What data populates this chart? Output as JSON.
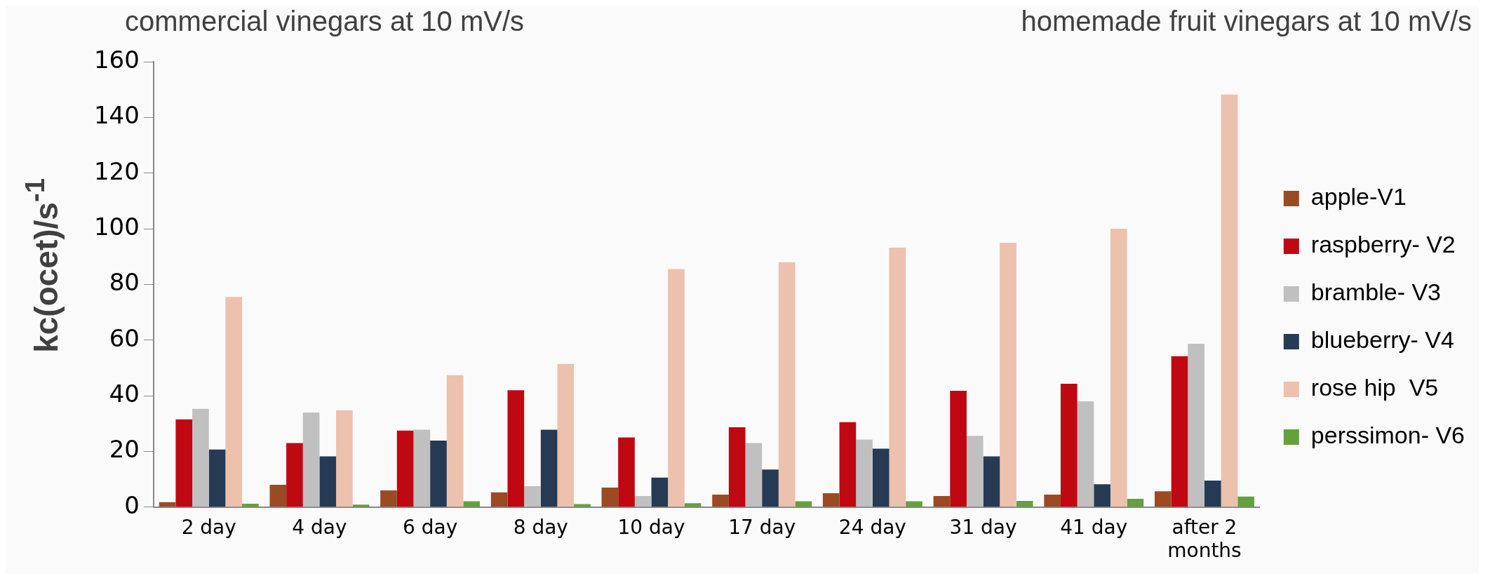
{
  "chart_data": {
    "type": "bar",
    "title": "commercial vinegars at 10 mV/s",
    "subtitle": "homemade fruit vinegars at 10 mV/s",
    "ylabel": "kc(ocet)/s$^{-1}$",
    "categories": [
      "2 day",
      "4 day",
      "6 day",
      "8 day",
      "10 day",
      "17 day",
      "24 day",
      "31 day",
      "41 day",
      "after 2 months"
    ],
    "series": [
      {
        "name": "apple-V1",
        "color": "#9c4a24",
        "values": [
          1.8,
          8,
          6,
          5.3,
          7,
          4.5,
          5,
          4,
          4.5,
          5.7
        ]
      },
      {
        "name": "raspberry- V2",
        "color": "#c00812",
        "values": [
          31.5,
          23,
          27.5,
          42,
          25,
          28.7,
          30.5,
          41.8,
          44.3,
          54.2
        ]
      },
      {
        "name": "bramble- V3",
        "color": "#c0c0c0",
        "values": [
          35.3,
          34,
          27.8,
          7.5,
          4,
          23,
          24.3,
          25.6,
          38,
          58.7
        ]
      },
      {
        "name": "blueberry- V4",
        "color": "#273a54",
        "values": [
          20.7,
          18.2,
          23.9,
          27.8,
          10.6,
          13.5,
          21,
          18.2,
          8.2,
          9.5
        ]
      },
      {
        "name": "rose hip  V5",
        "color": "#ecc1ad",
        "values": [
          75.5,
          34.8,
          47.4,
          51.4,
          85.5,
          88,
          93.2,
          95,
          100,
          148.2
        ]
      },
      {
        "name": "perssimon- V6",
        "color": "#64a03c",
        "values": [
          1.2,
          0.9,
          2.1,
          1.1,
          1.4,
          2.1,
          2.1,
          2.2,
          3,
          3.8
        ]
      }
    ],
    "ylim": [
      0,
      160
    ],
    "yticks": [
      0,
      20,
      40,
      60,
      80,
      100,
      120,
      140,
      160
    ],
    "grid": false,
    "legend": "right"
  }
}
